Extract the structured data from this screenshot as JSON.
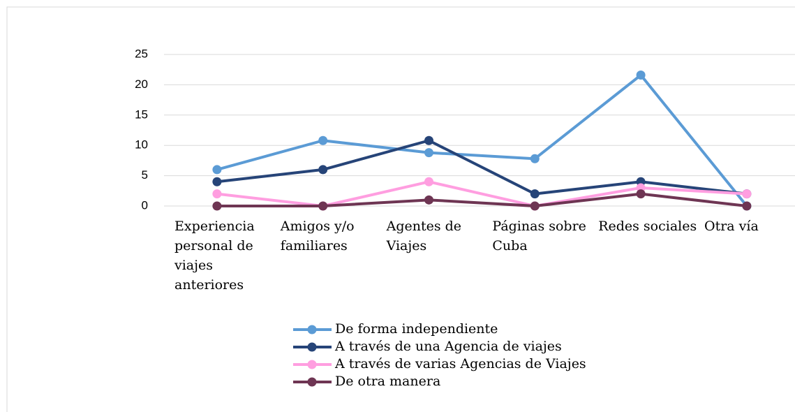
{
  "chart_data": {
    "type": "line",
    "categories": [
      "Experiencia personal de viajes anteriores",
      "Amigos y/o familiares",
      "Agentes de Viajes",
      "Páginas sobre Cuba",
      "Redes sociales",
      "Otra vía"
    ],
    "series": [
      {
        "name": "De forma independiente",
        "color": "#5b9bd5",
        "values": [
          6,
          10.8,
          8.8,
          7.8,
          21.6,
          0
        ]
      },
      {
        "name": "A través de una Agencia de viajes",
        "color": "#264478",
        "values": [
          4,
          6,
          10.8,
          2,
          4,
          2
        ]
      },
      {
        "name": "A través de varias Agencias de Viajes",
        "color": "#ff9ee0",
        "values": [
          2,
          0,
          4,
          0,
          3,
          2
        ]
      },
      {
        "name": "De otra manera",
        "color": "#6e3553",
        "values": [
          0,
          0,
          1,
          0,
          2,
          0
        ]
      }
    ],
    "ylim": [
      0,
      25
    ],
    "yticks": [
      0,
      5,
      10,
      15,
      20,
      25
    ],
    "grid": true,
    "legend": "bottom"
  }
}
